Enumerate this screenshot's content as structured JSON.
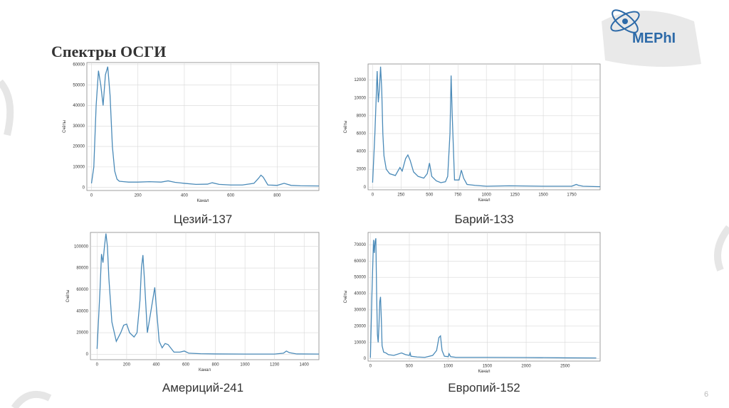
{
  "slide": {
    "title": "Спектры ОСГИ",
    "logo": "MEPhI",
    "page": 6
  },
  "chart_data": [
    {
      "type": "line",
      "title": "Цезий-137",
      "xlabel": "Канал",
      "ylabel": "Счёты",
      "color": "#4a8ab8",
      "grid": true,
      "xlim": [
        -20,
        980
      ],
      "ylim": [
        -1500,
        61000
      ],
      "xticks": [
        0,
        200,
        400,
        600,
        800
      ],
      "yticks": [
        0,
        10000,
        20000,
        30000,
        40000,
        50000,
        60000
      ],
      "x": [
        0,
        10,
        20,
        30,
        40,
        50,
        60,
        70,
        80,
        90,
        100,
        110,
        120,
        140,
        160,
        200,
        250,
        300,
        330,
        360,
        400,
        450,
        500,
        520,
        550,
        600,
        650,
        700,
        720,
        730,
        740,
        760,
        800,
        830,
        860,
        900,
        980
      ],
      "values": [
        2000,
        10000,
        40000,
        57000,
        50000,
        40000,
        55000,
        59000,
        45000,
        20000,
        8000,
        4000,
        3000,
        2800,
        2600,
        2600,
        2800,
        2600,
        3200,
        2500,
        2000,
        1500,
        1600,
        2300,
        1500,
        1200,
        1200,
        2000,
        4500,
        6000,
        5000,
        1200,
        1000,
        2000,
        1000,
        800,
        700
      ]
    },
    {
      "type": "line",
      "title": "Барий-133",
      "xlabel": "Канал",
      "ylabel": "Счёты",
      "color": "#4a8ab8",
      "grid": true,
      "xlim": [
        -40,
        2000
      ],
      "ylim": [
        -300,
        13800
      ],
      "xticks": [
        0,
        250,
        500,
        750,
        1000,
        1250,
        1500,
        1750
      ],
      "yticks": [
        0,
        2000,
        4000,
        6000,
        8000,
        10000,
        12000
      ],
      "x": [
        0,
        20,
        40,
        50,
        60,
        70,
        80,
        90,
        100,
        120,
        150,
        200,
        240,
        260,
        290,
        310,
        330,
        360,
        400,
        450,
        480,
        500,
        520,
        560,
        600,
        640,
        660,
        680,
        690,
        700,
        720,
        760,
        780,
        800,
        830,
        900,
        1000,
        1200,
        1500,
        1750,
        1790,
        1810,
        1850,
        2000
      ],
      "values": [
        500,
        6000,
        13000,
        9500,
        11000,
        13500,
        11000,
        6000,
        3500,
        2000,
        1500,
        1300,
        2200,
        1800,
        3200,
        3600,
        3000,
        1700,
        1200,
        1000,
        1500,
        2700,
        1200,
        700,
        500,
        600,
        1200,
        6000,
        12500,
        8000,
        800,
        800,
        1900,
        1000,
        300,
        200,
        100,
        150,
        100,
        100,
        300,
        200,
        100,
        50
      ]
    },
    {
      "type": "line",
      "title": "Америций-241",
      "xlabel": "Канал",
      "ylabel": "Счёты",
      "color": "#4a8ab8",
      "grid": true,
      "xlim": [
        -45,
        1500
      ],
      "ylim": [
        -5000,
        113000
      ],
      "xticks": [
        0,
        200,
        400,
        600,
        800,
        1000,
        1200,
        1400
      ],
      "yticks": [
        0,
        20000,
        40000,
        60000,
        80000,
        100000
      ],
      "x": [
        0,
        20,
        30,
        40,
        50,
        60,
        70,
        80,
        100,
        130,
        160,
        180,
        200,
        220,
        250,
        270,
        290,
        300,
        310,
        320,
        340,
        370,
        390,
        400,
        420,
        440,
        460,
        480,
        520,
        560,
        590,
        620,
        700,
        800,
        1000,
        1200,
        1260,
        1280,
        1300,
        1350,
        1500
      ],
      "values": [
        5000,
        60000,
        93000,
        85000,
        100000,
        112000,
        100000,
        70000,
        30000,
        12000,
        20000,
        27000,
        28000,
        20000,
        16000,
        20000,
        50000,
        80000,
        92000,
        70000,
        20000,
        45000,
        62000,
        45000,
        12000,
        6000,
        10000,
        9000,
        2000,
        2000,
        3000,
        1000,
        500,
        300,
        200,
        200,
        1000,
        3000,
        1500,
        300,
        200
      ]
    },
    {
      "type": "line",
      "title": "Европий-152",
      "xlabel": "Канал",
      "ylabel": "Счёты",
      "color": "#4a8ab8",
      "grid": true,
      "xlim": [
        -30,
        2950
      ],
      "ylim": [
        -1500,
        77600
      ],
      "xticks": [
        0,
        500,
        1000,
        1500,
        2000,
        2500
      ],
      "yticks": [
        0,
        10000,
        20000,
        30000,
        40000,
        50000,
        60000,
        70000
      ],
      "x": [
        0,
        20,
        40,
        50,
        60,
        70,
        80,
        90,
        100,
        110,
        120,
        130,
        140,
        150,
        170,
        200,
        230,
        300,
        400,
        450,
        500,
        510,
        520,
        600,
        700,
        800,
        850,
        880,
        900,
        920,
        950,
        1000,
        1010,
        1030,
        1100,
        1500,
        2000,
        2500,
        2900
      ],
      "values": [
        500,
        40000,
        73000,
        65000,
        72000,
        74000,
        40000,
        15000,
        10000,
        20000,
        35000,
        38000,
        25000,
        8000,
        4000,
        3500,
        2500,
        2000,
        3500,
        2500,
        2000,
        3500,
        1500,
        1000,
        800,
        2000,
        5000,
        13000,
        14000,
        5000,
        1500,
        1200,
        3000,
        1200,
        800,
        800,
        700,
        500,
        400
      ]
    }
  ]
}
